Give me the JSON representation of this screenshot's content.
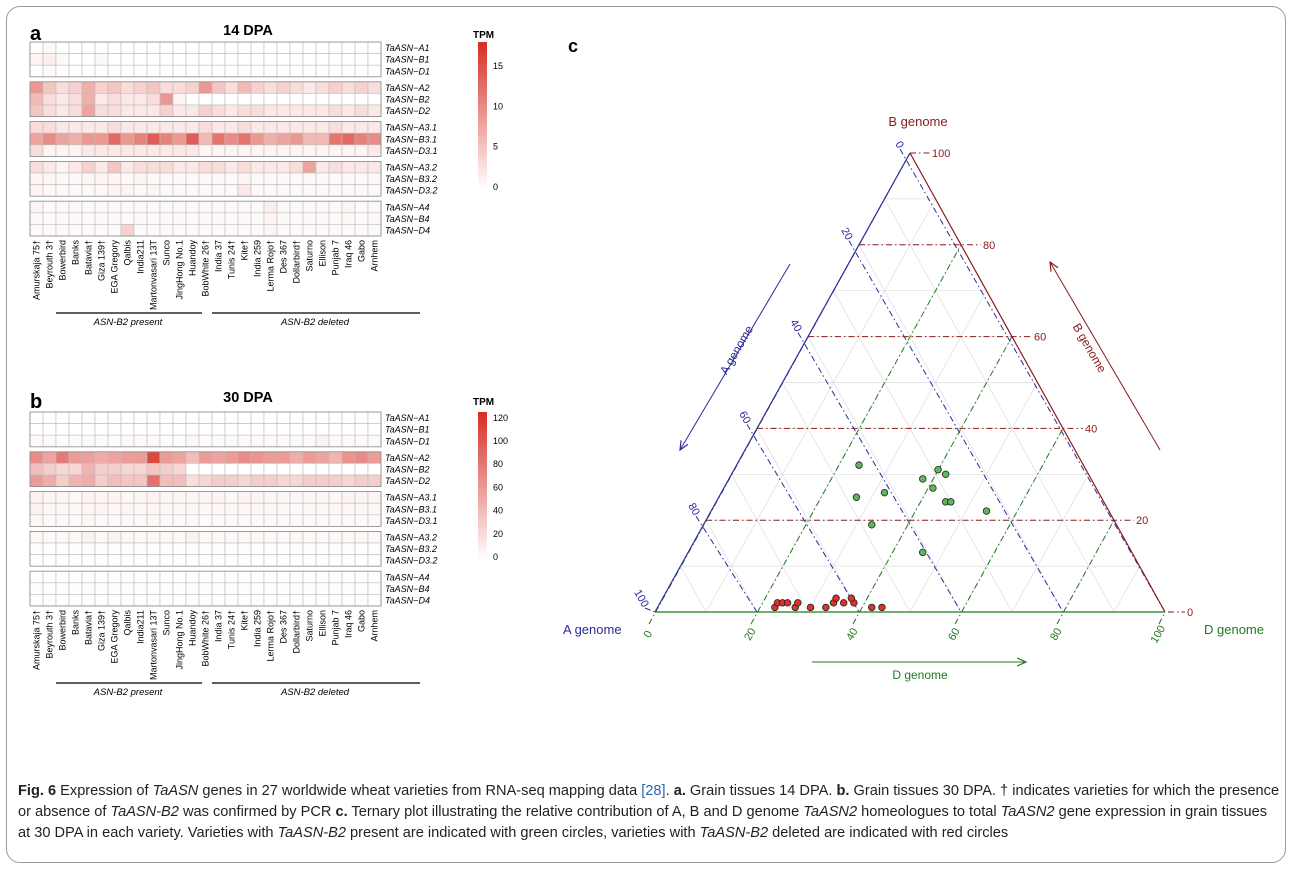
{
  "panels": {
    "a": {
      "letter": "a",
      "title": "14 DPA",
      "tpm_label": "TPM",
      "ticks": [
        "15",
        "10",
        "5",
        "0"
      ],
      "tick_values": [
        15,
        10,
        5,
        0
      ],
      "max": 18
    },
    "b": {
      "letter": "b",
      "title": "30 DPA",
      "tpm_label": "TPM",
      "ticks": [
        "120",
        "100",
        "80",
        "60",
        "40",
        "20",
        "0"
      ],
      "tick_values": [
        120,
        100,
        80,
        60,
        40,
        20,
        0
      ],
      "max": 125
    },
    "c": {
      "letter": "c"
    }
  },
  "genes": [
    "TaASN−A1",
    "TaASN−B1",
    "TaASN−D1",
    "TaASN−A2",
    "TaASN−B2",
    "TaASN−D2",
    "TaASN−A3.1",
    "TaASN−B3.1",
    "TaASN−D3.1",
    "TaASN−A3.2",
    "TaASN−B3.2",
    "TaASN−D3.2",
    "TaASN−A4",
    "TaASN−B4",
    "TaASN−D4"
  ],
  "varieties": [
    "Amurskaja 75†",
    "Beyrouth 3†",
    "Bowerbird",
    "Banks",
    "Batavia†",
    "Giza 139†",
    "EGA Gregory",
    "Qalbis",
    "India211",
    "Martonvasari 13T",
    "Sunco",
    "JingHong No.1",
    "Huandoy",
    "BobWhite 26†",
    "India 37",
    "Tunis 24†",
    "Kite†",
    "India 259",
    "Lerma Rojo†",
    "Des 367",
    "Dollarbird†",
    "Saturno",
    "Ellison",
    "Punjab 7",
    "Iraq 46",
    "Gabo",
    "Arnhem"
  ],
  "group_labels": {
    "present": "ASN-B2 present",
    "deleted": "ASN-B2 deleted"
  },
  "colors": {
    "heat_high": "#d73027",
    "heat_low": "#ffffff",
    "a_axis": "#2b2b9c",
    "b_axis": "#8b1a1a",
    "d_axis": "#1f7a1f",
    "present_point": "#5cb85c",
    "deleted_point": "#d9342b"
  },
  "chart_data": [
    {
      "type": "heatmap",
      "title": "14 DPA",
      "legend_title": "TPM",
      "zlim": [
        0,
        18
      ],
      "rows": "genes",
      "columns": "varieties",
      "values": [
        [
          0,
          0.5,
          0,
          0,
          0,
          0,
          0,
          0,
          0,
          0,
          0,
          0,
          0,
          0,
          0,
          0,
          0,
          0,
          0,
          0,
          0,
          0,
          0,
          0,
          0,
          0,
          0
        ],
        [
          1,
          1.5,
          0.5,
          0,
          0,
          0.5,
          0,
          0,
          0,
          0,
          0,
          0,
          0,
          0,
          0,
          0,
          0,
          0,
          0,
          0,
          0,
          0,
          0,
          0,
          0,
          0,
          0
        ],
        [
          0,
          0.5,
          0,
          0,
          0,
          0,
          0,
          0,
          0,
          0,
          0,
          0,
          0,
          0,
          0,
          0,
          0,
          0,
          0,
          0,
          0,
          0,
          0,
          0,
          0,
          0,
          0
        ],
        [
          9,
          5,
          3,
          4,
          7,
          4,
          5,
          3,
          4,
          5,
          3,
          3,
          4,
          9,
          5,
          3,
          6,
          4,
          3,
          4,
          3,
          2,
          3,
          4,
          3,
          4,
          3
        ],
        [
          6,
          3,
          2,
          3,
          7,
          2,
          3,
          2,
          2,
          3,
          9,
          1,
          0,
          0,
          0,
          0,
          0,
          0,
          0,
          0,
          0,
          0,
          0,
          0,
          0,
          0,
          0
        ],
        [
          5,
          3,
          2,
          3,
          8,
          3,
          3,
          2,
          2,
          2,
          4,
          2,
          2,
          4,
          3,
          2,
          3,
          3,
          2,
          2,
          2,
          2,
          2,
          3,
          2,
          3,
          2
        ],
        [
          3,
          3,
          2,
          2,
          2,
          2,
          3,
          2,
          2,
          2,
          2,
          2,
          2,
          3,
          2,
          2,
          3,
          2,
          2,
          2,
          2,
          2,
          2,
          3,
          2,
          2,
          2
        ],
        [
          8,
          10,
          8,
          7,
          9,
          9,
          13,
          9,
          11,
          14,
          11,
          9,
          14,
          6,
          12,
          10,
          12,
          9,
          7,
          8,
          9,
          6,
          6,
          12,
          13,
          11,
          10
        ],
        [
          3,
          1,
          1,
          1,
          2,
          2,
          2,
          2,
          2,
          2,
          2,
          2,
          2,
          1,
          1,
          1,
          1,
          1,
          1,
          1,
          1,
          1,
          1,
          1,
          1,
          1,
          2
        ],
        [
          3,
          2,
          1,
          2,
          4,
          2,
          5,
          2,
          3,
          3,
          3,
          2,
          2,
          3,
          3,
          2,
          3,
          2,
          2,
          2,
          3,
          8,
          2,
          3,
          2,
          2,
          2
        ],
        [
          1,
          1,
          0.5,
          0.5,
          1,
          1,
          1,
          0.5,
          1,
          0.5,
          0.5,
          0.5,
          0.5,
          0.5,
          0.5,
          0.5,
          1,
          0.5,
          0.5,
          0.5,
          0.5,
          0.5,
          0.5,
          0.5,
          0.5,
          0.5,
          0.5
        ],
        [
          1,
          0.5,
          0.5,
          0.5,
          0.5,
          0.5,
          1,
          1,
          0.5,
          1,
          0.5,
          0.5,
          0.5,
          0.5,
          0.5,
          0.5,
          2,
          0.5,
          0.5,
          0.5,
          0.5,
          0.5,
          0.5,
          0.5,
          0.5,
          0.5,
          0.5
        ],
        [
          1,
          0.5,
          0.5,
          0.5,
          0.5,
          0.5,
          0.5,
          0.5,
          0.5,
          0.5,
          0.5,
          0.5,
          0.5,
          0.5,
          0.5,
          0.5,
          0.5,
          0.5,
          1.5,
          0.5,
          0.5,
          0.5,
          0.5,
          0.5,
          1,
          0.5,
          0.5
        ],
        [
          0.5,
          0.5,
          0.5,
          0.5,
          0.5,
          0.5,
          0.5,
          0.5,
          0.5,
          0.5,
          0.5,
          0.5,
          0.5,
          0.5,
          0.5,
          0.5,
          0.5,
          0.5,
          1,
          0.5,
          0.5,
          0.5,
          0.5,
          0.5,
          0.5,
          0.5,
          0.5
        ],
        [
          0.5,
          0.5,
          0.5,
          0.5,
          0.5,
          0.5,
          0.5,
          4,
          0.5,
          0.5,
          0.5,
          0.5,
          0.5,
          0.5,
          0.5,
          0.5,
          0.5,
          0.5,
          1,
          0.5,
          0.5,
          0.5,
          0.5,
          0.5,
          0.5,
          0.5,
          0.5
        ]
      ]
    },
    {
      "type": "heatmap",
      "title": "30 DPA",
      "legend_title": "TPM",
      "zlim": [
        0,
        125
      ],
      "rows": "genes",
      "columns": "varieties",
      "values": [
        [
          0,
          0,
          0,
          0,
          0,
          0,
          0,
          0,
          0,
          0,
          0,
          0,
          0,
          0,
          0,
          0,
          0,
          0,
          0,
          0,
          0,
          0,
          0,
          0,
          0,
          0,
          0
        ],
        [
          0,
          0,
          0,
          0,
          0,
          0,
          0,
          0,
          0,
          0,
          0,
          0,
          0,
          0,
          0,
          0,
          0,
          0,
          0,
          0,
          0,
          0,
          0,
          0,
          0,
          0,
          0
        ],
        [
          3,
          3,
          2,
          3,
          3,
          3,
          2,
          3,
          3,
          3,
          2,
          2,
          5,
          2,
          3,
          3,
          3,
          3,
          3,
          3,
          3,
          3,
          8,
          3,
          3,
          3,
          3
        ],
        [
          70,
          55,
          80,
          60,
          58,
          50,
          55,
          60,
          60,
          110,
          60,
          55,
          40,
          60,
          55,
          60,
          70,
          65,
          60,
          60,
          50,
          60,
          55,
          45,
          65,
          70,
          60
        ],
        [
          40,
          30,
          25,
          25,
          45,
          30,
          30,
          25,
          25,
          35,
          30,
          25,
          0,
          0,
          0,
          0,
          0,
          0,
          0,
          0,
          0,
          0,
          0,
          0,
          0,
          0,
          0
        ],
        [
          60,
          50,
          30,
          45,
          50,
          30,
          40,
          35,
          35,
          85,
          40,
          40,
          20,
          25,
          30,
          30,
          25,
          30,
          30,
          25,
          25,
          30,
          30,
          30,
          25,
          30,
          30
        ],
        [
          8,
          6,
          6,
          5,
          7,
          6,
          7,
          5,
          6,
          8,
          6,
          6,
          6,
          6,
          7,
          5,
          7,
          6,
          6,
          6,
          6,
          6,
          6,
          5,
          7,
          6,
          6
        ],
        [
          8,
          5,
          5,
          5,
          6,
          6,
          5,
          6,
          5,
          6,
          5,
          5,
          5,
          4,
          5,
          5,
          5,
          5,
          5,
          5,
          4,
          5,
          5,
          5,
          5,
          5,
          5
        ],
        [
          5,
          4,
          4,
          4,
          5,
          4,
          4,
          4,
          4,
          5,
          4,
          4,
          4,
          3,
          4,
          4,
          4,
          4,
          4,
          4,
          4,
          4,
          4,
          4,
          4,
          4,
          4
        ],
        [
          5,
          4,
          5,
          5,
          8,
          5,
          8,
          5,
          5,
          5,
          5,
          5,
          8,
          5,
          5,
          4,
          5,
          5,
          5,
          4,
          5,
          5,
          5,
          4,
          5,
          5,
          4
        ],
        [
          1,
          1,
          1,
          1,
          1,
          1,
          1,
          1,
          1,
          1,
          1,
          1,
          1,
          1,
          1,
          1,
          1,
          1,
          1,
          1,
          1,
          1,
          1,
          1,
          1,
          1,
          1
        ],
        [
          1,
          1,
          1,
          1,
          1,
          1,
          1,
          1,
          1,
          1,
          1,
          1,
          1,
          1,
          1,
          1,
          1,
          1,
          1,
          1,
          1,
          1,
          1,
          1,
          1,
          1,
          1
        ],
        [
          1,
          1,
          1,
          1,
          1,
          1,
          1,
          1,
          1,
          1,
          1,
          1,
          1,
          1,
          1,
          1,
          1,
          1,
          1,
          1,
          1,
          1,
          1,
          1,
          1,
          1,
          1
        ],
        [
          1,
          1,
          1,
          1,
          1,
          1,
          1,
          1,
          1,
          1,
          1,
          1,
          1,
          1,
          1,
          1,
          1,
          1,
          1,
          1,
          1,
          1,
          1,
          1,
          1,
          1,
          1
        ],
        [
          1,
          1,
          1,
          1,
          1,
          1,
          1,
          1,
          1,
          1,
          1,
          1,
          1,
          1,
          1,
          1,
          1,
          1,
          1,
          1,
          1,
          1,
          1,
          1,
          1,
          1,
          1
        ]
      ]
    },
    {
      "type": "scatter",
      "subtype": "ternary",
      "axes": {
        "a": "A genome",
        "b": "B genome",
        "d": "D genome"
      },
      "axis_arrow_labels": {
        "a": "A genome",
        "b": "B genome",
        "d": "D genome"
      },
      "ticks": [
        "0",
        "20",
        "40",
        "60",
        "80",
        "100"
      ],
      "tick_values": [
        0,
        20,
        40,
        60,
        80,
        100
      ],
      "grid": true,
      "series": [
        {
          "group": "present",
          "color": "#5cb85c",
          "points": [
            {
              "a": 44,
              "b": 32,
              "d": 24
            },
            {
              "a": 33,
              "b": 29,
              "d": 38
            },
            {
              "a": 32,
              "b": 27,
              "d": 41
            },
            {
              "a": 48,
              "b": 25,
              "d": 27
            },
            {
              "a": 42,
              "b": 26,
              "d": 32
            },
            {
              "a": 29,
              "b": 31,
              "d": 40
            },
            {
              "a": 28,
              "b": 30,
              "d": 42
            },
            {
              "a": 31,
              "b": 24,
              "d": 45
            },
            {
              "a": 30,
              "b": 24,
              "d": 46
            },
            {
              "a": 24,
              "b": 22,
              "d": 54
            },
            {
              "a": 48,
              "b": 19,
              "d": 33
            },
            {
              "a": 41,
              "b": 13,
              "d": 46
            }
          ]
        },
        {
          "group": "deleted",
          "color": "#d9342b",
          "points": [
            {
              "a": 76,
              "b": 1,
              "d": 23
            },
            {
              "a": 75,
              "b": 2,
              "d": 23
            },
            {
              "a": 74,
              "b": 2,
              "d": 24
            },
            {
              "a": 73,
              "b": 2,
              "d": 25
            },
            {
              "a": 72,
              "b": 1,
              "d": 27
            },
            {
              "a": 71,
              "b": 2,
              "d": 27
            },
            {
              "a": 69,
              "b": 1,
              "d": 30
            },
            {
              "a": 66,
              "b": 1,
              "d": 33
            },
            {
              "a": 64,
              "b": 2,
              "d": 34
            },
            {
              "a": 63,
              "b": 3,
              "d": 34
            },
            {
              "a": 62,
              "b": 2,
              "d": 36
            },
            {
              "a": 60,
              "b": 2,
              "d": 38
            },
            {
              "a": 57,
              "b": 1,
              "d": 42
            },
            {
              "a": 55,
              "b": 1,
              "d": 44
            },
            {
              "a": 60,
              "b": 3,
              "d": 37
            }
          ]
        }
      ]
    }
  ],
  "caption": {
    "fig": "Fig. 6",
    "s1": " Expression of ",
    "g1": "TaASN",
    "s2": " genes in 27 worldwide wheat varieties from RNA-seq mapping data ",
    "ref": "[28]",
    "s3": ". ",
    "la": "a.",
    "s4": " Grain tissues 14 DPA. ",
    "lb": "b.",
    "s5": " Grain tissues 30 DPA. † indicates varieties for which the presence or absence of ",
    "g2": "TaASN-B2",
    "s6": " was confirmed by PCR ",
    "lc": "c.",
    "s7": " Ternary plot illustrating the relative contribution of A, B and D genome ",
    "g3": "TaASN2",
    "s8": " homeologues to total ",
    "g4": "TaASN2",
    "s9": " gene expression in grain tissues at 30 DPA in each variety. Varieties with ",
    "g5": "TaASN-B2",
    "s10": " present are indicated with green circles, varieties with ",
    "g6": "TaASN-B2",
    "s11": " deleted are indicated with red circles"
  }
}
